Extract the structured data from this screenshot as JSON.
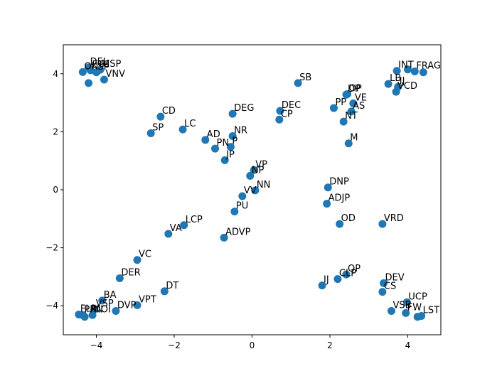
{
  "chart_data": {
    "type": "scatter",
    "title": "",
    "xlabel": "",
    "ylabel": "",
    "xlim": [
      -4.85,
      4.85
    ],
    "ylim": [
      -5.0,
      5.0
    ],
    "xticks": [
      -4,
      -2,
      0,
      2,
      4
    ],
    "yticks": [
      -4,
      -2,
      0,
      2,
      4
    ],
    "xtick_labels": [
      "−4",
      "−2",
      "0",
      "2",
      "4"
    ],
    "ytick_labels": [
      "−4",
      "−2",
      "0",
      "2",
      "4"
    ],
    "grid": false,
    "color": "#1f77b4",
    "points": [
      {
        "label": "DEL",
        "x": -4.2,
        "y": 4.22
      },
      {
        "label": "ON",
        "x": -4.35,
        "y": 4.06
      },
      {
        "label": "ETC",
        "x": -4.15,
        "y": 4.12
      },
      {
        "label": "MSP",
        "x": -3.9,
        "y": 4.14
      },
      {
        "label": "SP",
        "x": -4.0,
        "y": 4.05
      },
      {
        "label": "VNV",
        "x": -3.8,
        "y": 3.8
      },
      {
        "label": "",
        "x": -4.2,
        "y": 3.68
      },
      {
        "label": "SB",
        "x": 1.18,
        "y": 3.68
      },
      {
        "label": "INT",
        "x": 3.72,
        "y": 4.1
      },
      {
        "label": "",
        "x": 4.0,
        "y": 4.15
      },
      {
        "label": "FRAG",
        "x": 4.18,
        "y": 4.08
      },
      {
        "label": "",
        "x": 4.4,
        "y": 4.05
      },
      {
        "label": "LB",
        "x": 3.5,
        "y": 3.65
      },
      {
        "label": "IJ",
        "x": 3.75,
        "y": 3.55
      },
      {
        "label": "VCD",
        "x": 3.7,
        "y": 3.38
      },
      {
        "label": "DP",
        "x": 2.42,
        "y": 3.28
      },
      {
        "label": "OP",
        "x": 2.45,
        "y": 3.3
      },
      {
        "label": "VE",
        "x": 2.6,
        "y": 2.98
      },
      {
        "label": "PP",
        "x": 2.1,
        "y": 2.82
      },
      {
        "label": "AS",
        "x": 2.55,
        "y": 2.7
      },
      {
        "label": "NT",
        "x": 2.35,
        "y": 2.35
      },
      {
        "label": "M",
        "x": 2.48,
        "y": 1.6
      },
      {
        "label": "DEC",
        "x": 0.72,
        "y": 2.72
      },
      {
        "label": "CP",
        "x": 0.7,
        "y": 2.42
      },
      {
        "label": "DEG",
        "x": -0.5,
        "y": 2.62
      },
      {
        "label": "CD",
        "x": -2.35,
        "y": 2.52
      },
      {
        "label": "LC",
        "x": -1.78,
        "y": 2.08
      },
      {
        "label": "SP",
        "x": -2.6,
        "y": 1.95
      },
      {
        "label": "NR",
        "x": -0.5,
        "y": 1.85
      },
      {
        "label": "AD",
        "x": -1.2,
        "y": 1.72
      },
      {
        "label": "PN",
        "x": -0.95,
        "y": 1.42
      },
      {
        "label": "P",
        "x": -0.55,
        "y": 1.48
      },
      {
        "label": "JP",
        "x": -0.7,
        "y": 1.02
      },
      {
        "label": "VP",
        "x": 0.05,
        "y": 0.68
      },
      {
        "label": "NP",
        "x": -0.05,
        "y": 0.48
      },
      {
        "label": "NN",
        "x": 0.08,
        "y": -0.02
      },
      {
        "label": "VV",
        "x": -0.25,
        "y": -0.22
      },
      {
        "label": "PU",
        "x": -0.45,
        "y": -0.75
      },
      {
        "label": "DNP",
        "x": 1.95,
        "y": 0.08
      },
      {
        "label": "ADJP",
        "x": 1.92,
        "y": -0.48
      },
      {
        "label": "OD",
        "x": 2.25,
        "y": -1.18
      },
      {
        "label": "VRD",
        "x": 3.35,
        "y": -1.18
      },
      {
        "label": "LCP",
        "x": -1.75,
        "y": -1.22
      },
      {
        "label": "VA",
        "x": -2.15,
        "y": -1.52
      },
      {
        "label": "ADVP",
        "x": -0.72,
        "y": -1.65
      },
      {
        "label": "VC",
        "x": -2.95,
        "y": -2.42
      },
      {
        "label": "DER",
        "x": -3.4,
        "y": -3.05
      },
      {
        "label": "DT",
        "x": -2.25,
        "y": -3.5
      },
      {
        "label": "BA",
        "x": -3.85,
        "y": -3.82
      },
      {
        "label": "VPT",
        "x": -2.95,
        "y": -3.98
      },
      {
        "label": "DVP",
        "x": -3.5,
        "y": -4.18
      },
      {
        "label": "VSP",
        "x": -4.05,
        "y": -4.12
      },
      {
        "label": "FLR",
        "x": -4.45,
        "y": -4.3
      },
      {
        "label": "PRN",
        "x": -4.35,
        "y": -4.32
      },
      {
        "label": "NOI",
        "x": -4.1,
        "y": -4.32
      },
      {
        "label": "",
        "x": -4.3,
        "y": -4.38
      },
      {
        "label": "QP",
        "x": 2.42,
        "y": -2.92
      },
      {
        "label": "CLP",
        "x": 2.2,
        "y": -3.08
      },
      {
        "label": "IJ",
        "x": 1.8,
        "y": -3.3
      },
      {
        "label": "DEV",
        "x": 3.38,
        "y": -3.22
      },
      {
        "label": "CS",
        "x": 3.35,
        "y": -3.52
      },
      {
        "label": "UCP",
        "x": 3.98,
        "y": -3.88
      },
      {
        "label": "VSB",
        "x": 3.58,
        "y": -4.18
      },
      {
        "label": "FW",
        "x": 3.95,
        "y": -4.25
      },
      {
        "label": "LST",
        "x": 4.35,
        "y": -4.35
      },
      {
        "label": "",
        "x": 4.25,
        "y": -4.38
      }
    ]
  }
}
